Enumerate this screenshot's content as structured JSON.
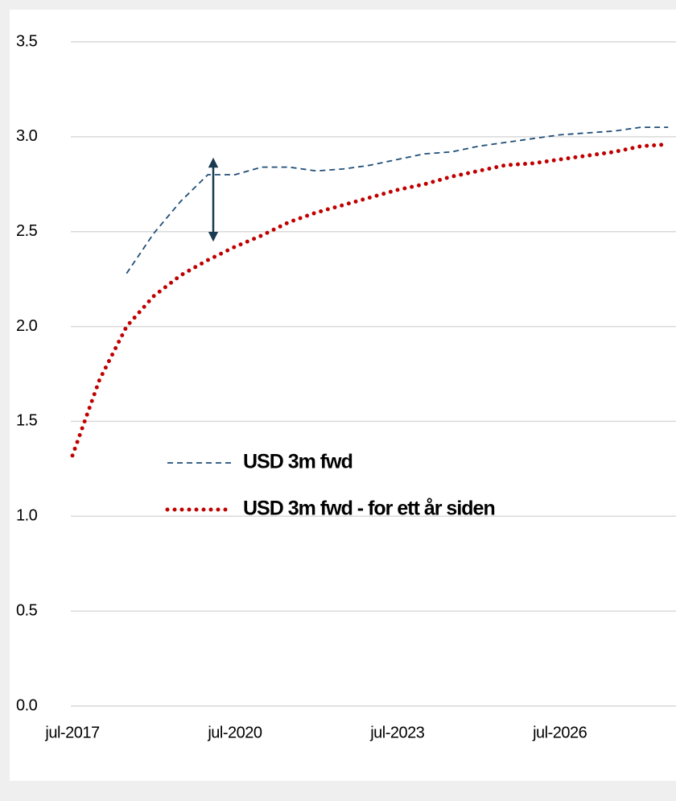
{
  "chart_data": {
    "type": "line",
    "categories": [
      "jul-2017",
      null,
      null,
      null,
      null,
      null,
      "jul-2020",
      null,
      null,
      null,
      null,
      null,
      "jul-2023",
      null,
      null,
      null,
      null,
      null,
      "jul-2026",
      null,
      null,
      null,
      null
    ],
    "series": [
      {
        "name": "USD 3m fwd",
        "color": "#1f4e79",
        "style": "dashed",
        "values": [
          null,
          null,
          2.28,
          2.49,
          2.66,
          2.8,
          2.8,
          2.84,
          2.84,
          2.82,
          2.83,
          2.85,
          2.88,
          2.91,
          2.92,
          2.95,
          2.97,
          2.99,
          3.01,
          3.02,
          3.03,
          3.05,
          3.05
        ]
      },
      {
        "name": "USD 3m fwd - for ett år siden",
        "color": "#c00000",
        "style": "dotted",
        "values": [
          1.32,
          1.72,
          2.0,
          2.16,
          2.27,
          2.35,
          2.42,
          2.48,
          2.55,
          2.6,
          2.64,
          2.68,
          2.72,
          2.75,
          2.79,
          2.82,
          2.85,
          2.86,
          2.88,
          2.9,
          2.92,
          2.95,
          2.96
        ]
      }
    ],
    "ylim": [
      0,
      3.5
    ],
    "yticks": [
      {
        "value": 0,
        "label": "0.0"
      },
      0.5,
      {
        "value": 1,
        "label": "1.0"
      },
      1.5,
      {
        "value": 2,
        "label": "2.0"
      },
      2.5,
      {
        "value": 3,
        "label": "3.0"
      },
      3.5
    ],
    "grid": true,
    "legend": "center-left"
  }
}
